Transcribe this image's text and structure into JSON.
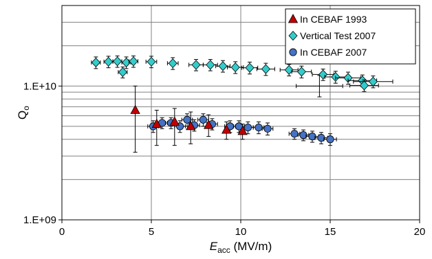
{
  "chart_data": {
    "type": "scatter",
    "xlabel_main": "E",
    "xlabel_sub": "acc",
    "xlabel_unit": " (MV/m)",
    "ylabel_main": "Q",
    "ylabel_sub": "o",
    "x_ticks": [
      "0",
      "5",
      "10",
      "15",
      "20"
    ],
    "y_ticks": [
      "1.E+09",
      "1.E+10"
    ],
    "xlim": [
      0,
      20
    ],
    "ylim": [
      1000000000.0,
      40000000000.0
    ],
    "y_scale": "log",
    "grid": true,
    "legend_position": "top-right",
    "series": [
      {
        "name": "In CEBAF 1993",
        "marker": "triangle",
        "color": "#c00000",
        "points": [
          {
            "x": 4.1,
            "y": 6600000000.0,
            "ylo": 3200000000.0,
            "yhi": 10000000000.0,
            "xerr": 0
          },
          {
            "x": 5.3,
            "y": 5200000000.0,
            "ylo": 3600000000.0,
            "yhi": 6600000000.0,
            "xerr": 0
          },
          {
            "x": 6.3,
            "y": 5400000000.0,
            "ylo": 3600000000.0,
            "yhi": 6800000000.0,
            "xerr": 0
          },
          {
            "x": 7.2,
            "y": 5000000000.0,
            "ylo": 3700000000.0,
            "yhi": 6400000000.0,
            "xerr": 0
          },
          {
            "x": 8.2,
            "y": 5100000000.0,
            "ylo": 4200000000.0,
            "yhi": 6100000000.0,
            "xerr": 0
          },
          {
            "x": 9.2,
            "y": 4700000000.0,
            "ylo": 4000000000.0,
            "yhi": 5400000000.0,
            "xerr": 0
          },
          {
            "x": 10.1,
            "y": 4600000000.0,
            "ylo": 4000000000.0,
            "yhi": 5200000000.0,
            "xerr": 0
          }
        ]
      },
      {
        "name": "Vertical Test 2007",
        "marker": "diamond",
        "color": "#33cccc",
        "points": [
          {
            "x": 1.9,
            "y": 15000000000.0,
            "ylo": 13500000000.0,
            "yhi": 16500000000.0,
            "xerr": 0.25
          },
          {
            "x": 2.6,
            "y": 15200000000.0,
            "ylo": 13700000000.0,
            "yhi": 16700000000.0,
            "xerr": 0.25
          },
          {
            "x": 3.1,
            "y": 15300000000.0,
            "ylo": 13800000000.0,
            "yhi": 16800000000.0,
            "xerr": 0.25
          },
          {
            "x": 3.4,
            "y": 12700000000.0,
            "ylo": 11500000000.0,
            "yhi": 13900000000.0,
            "xerr": 0.25
          },
          {
            "x": 3.6,
            "y": 15000000000.0,
            "ylo": 13500000000.0,
            "yhi": 16500000000.0,
            "xerr": 0.25
          },
          {
            "x": 4.0,
            "y": 15300000000.0,
            "ylo": 13800000000.0,
            "yhi": 16800000000.0,
            "xerr": 0.25
          },
          {
            "x": 5.0,
            "y": 15200000000.0,
            "ylo": 13700000000.0,
            "yhi": 16700000000.0,
            "xerr": 0.3
          },
          {
            "x": 6.2,
            "y": 14800000000.0,
            "ylo": 13300000000.0,
            "yhi": 16300000000.0,
            "xerr": 0.3
          },
          {
            "x": 7.5,
            "y": 14400000000.0,
            "ylo": 13000000000.0,
            "yhi": 15800000000.0,
            "xerr": 0.4
          },
          {
            "x": 8.3,
            "y": 14400000000.0,
            "ylo": 13000000000.0,
            "yhi": 15800000000.0,
            "xerr": 0.4
          },
          {
            "x": 9.0,
            "y": 14100000000.0,
            "ylo": 12700000000.0,
            "yhi": 15500000000.0,
            "xerr": 0.4
          },
          {
            "x": 9.7,
            "y": 13800000000.0,
            "ylo": 12400000000.0,
            "yhi": 15200000000.0,
            "xerr": 0.45
          },
          {
            "x": 10.5,
            "y": 13700000000.0,
            "ylo": 12300000000.0,
            "yhi": 15100000000.0,
            "xerr": 0.45
          },
          {
            "x": 11.4,
            "y": 13400000000.0,
            "ylo": 12000000000.0,
            "yhi": 14800000000.0,
            "xerr": 0.5
          },
          {
            "x": 12.7,
            "y": 13200000000.0,
            "ylo": 11900000000.0,
            "yhi": 14500000000.0,
            "xerr": 0.5
          },
          {
            "x": 13.4,
            "y": 12800000000.0,
            "ylo": 11500000000.0,
            "yhi": 14100000000.0,
            "xerr": 0.55
          },
          {
            "x": 14.6,
            "y": 12200000000.0,
            "ylo": 11000000000.0,
            "yhi": 13400000000.0,
            "xerr": 0.6
          },
          {
            "x": 15.3,
            "y": 11700000000.0,
            "ylo": 10500000000.0,
            "yhi": 12900000000.0,
            "xerr": 0.6
          },
          {
            "x": 16.0,
            "y": 11500000000.0,
            "ylo": 10300000000.0,
            "yhi": 12700000000.0,
            "xerr": 0.7
          },
          {
            "x": 16.8,
            "y": 11000000000.0,
            "ylo": 9900000000.0,
            "yhi": 12100000000.0,
            "xerr": 0.8
          },
          {
            "x": 16.9,
            "y": 10100000000.0,
            "ylo": 9100000000.0,
            "yhi": 11100000000.0,
            "xerr": 0.8
          },
          {
            "x": 17.4,
            "y": 10800000000.0,
            "ylo": 9700000000.0,
            "yhi": 11900000000.0,
            "xerr": 1.1
          }
        ]
      },
      {
        "name": "In CEBAF 2007",
        "marker": "circle",
        "color": "#4472c4",
        "points": [
          {
            "x": 5.1,
            "y": 5000000000.0,
            "ylo": 4500000000.0,
            "yhi": 5500000000.0,
            "xerr": 0.3
          },
          {
            "x": 5.6,
            "y": 5300000000.0,
            "ylo": 4800000000.0,
            "yhi": 5800000000.0,
            "xerr": 0.3
          },
          {
            "x": 6.1,
            "y": 5300000000.0,
            "ylo": 4800000000.0,
            "yhi": 5800000000.0,
            "xerr": 0.3
          },
          {
            "x": 6.6,
            "y": 5000000000.0,
            "ylo": 4500000000.0,
            "yhi": 5500000000.0,
            "xerr": 0.3
          },
          {
            "x": 7.0,
            "y": 5600000000.0,
            "ylo": 5000000000.0,
            "yhi": 6200000000.0,
            "xerr": 0.3
          },
          {
            "x": 7.4,
            "y": 5100000000.0,
            "ylo": 4600000000.0,
            "yhi": 5600000000.0,
            "xerr": 0.3
          },
          {
            "x": 7.9,
            "y": 5600000000.0,
            "ylo": 5000000000.0,
            "yhi": 6200000000.0,
            "xerr": 0.3
          },
          {
            "x": 8.4,
            "y": 5200000000.0,
            "ylo": 4700000000.0,
            "yhi": 5700000000.0,
            "xerr": 0.3
          },
          {
            "x": 9.4,
            "y": 5000000000.0,
            "ylo": 4500000000.0,
            "yhi": 5500000000.0,
            "xerr": 0.3
          },
          {
            "x": 9.9,
            "y": 5000000000.0,
            "ylo": 4500000000.0,
            "yhi": 5500000000.0,
            "xerr": 0.3
          },
          {
            "x": 10.4,
            "y": 4900000000.0,
            "ylo": 4400000000.0,
            "yhi": 5400000000.0,
            "xerr": 0.3
          },
          {
            "x": 11.0,
            "y": 4900000000.0,
            "ylo": 4400000000.0,
            "yhi": 5400000000.0,
            "xerr": 0.3
          },
          {
            "x": 11.5,
            "y": 4800000000.0,
            "ylo": 4300000000.0,
            "yhi": 5300000000.0,
            "xerr": 0.3
          },
          {
            "x": 13.0,
            "y": 4400000000.0,
            "ylo": 4000000000.0,
            "yhi": 4800000000.0,
            "xerr": 0.3
          },
          {
            "x": 13.5,
            "y": 4300000000.0,
            "ylo": 3900000000.0,
            "yhi": 4700000000.0,
            "xerr": 0.3
          },
          {
            "x": 14.0,
            "y": 4200000000.0,
            "ylo": 3800000000.0,
            "yhi": 4600000000.0,
            "xerr": 0.35
          },
          {
            "x": 14.5,
            "y": 4100000000.0,
            "ylo": 3700000000.0,
            "yhi": 4500000000.0,
            "xerr": 0.35
          },
          {
            "x": 15.0,
            "y": 4000000000.0,
            "ylo": 3600000000.0,
            "yhi": 4400000000.0,
            "xerr": 0.35
          }
        ]
      },
      {
        "name": "",
        "marker": "none",
        "color": "#000000",
        "points": [
          {
            "x": 14.4,
            "y": 10000000000.0,
            "ylo": 8300000000.0,
            "yhi": 12000000000.0,
            "xerr": 1.3
          }
        ]
      }
    ]
  }
}
